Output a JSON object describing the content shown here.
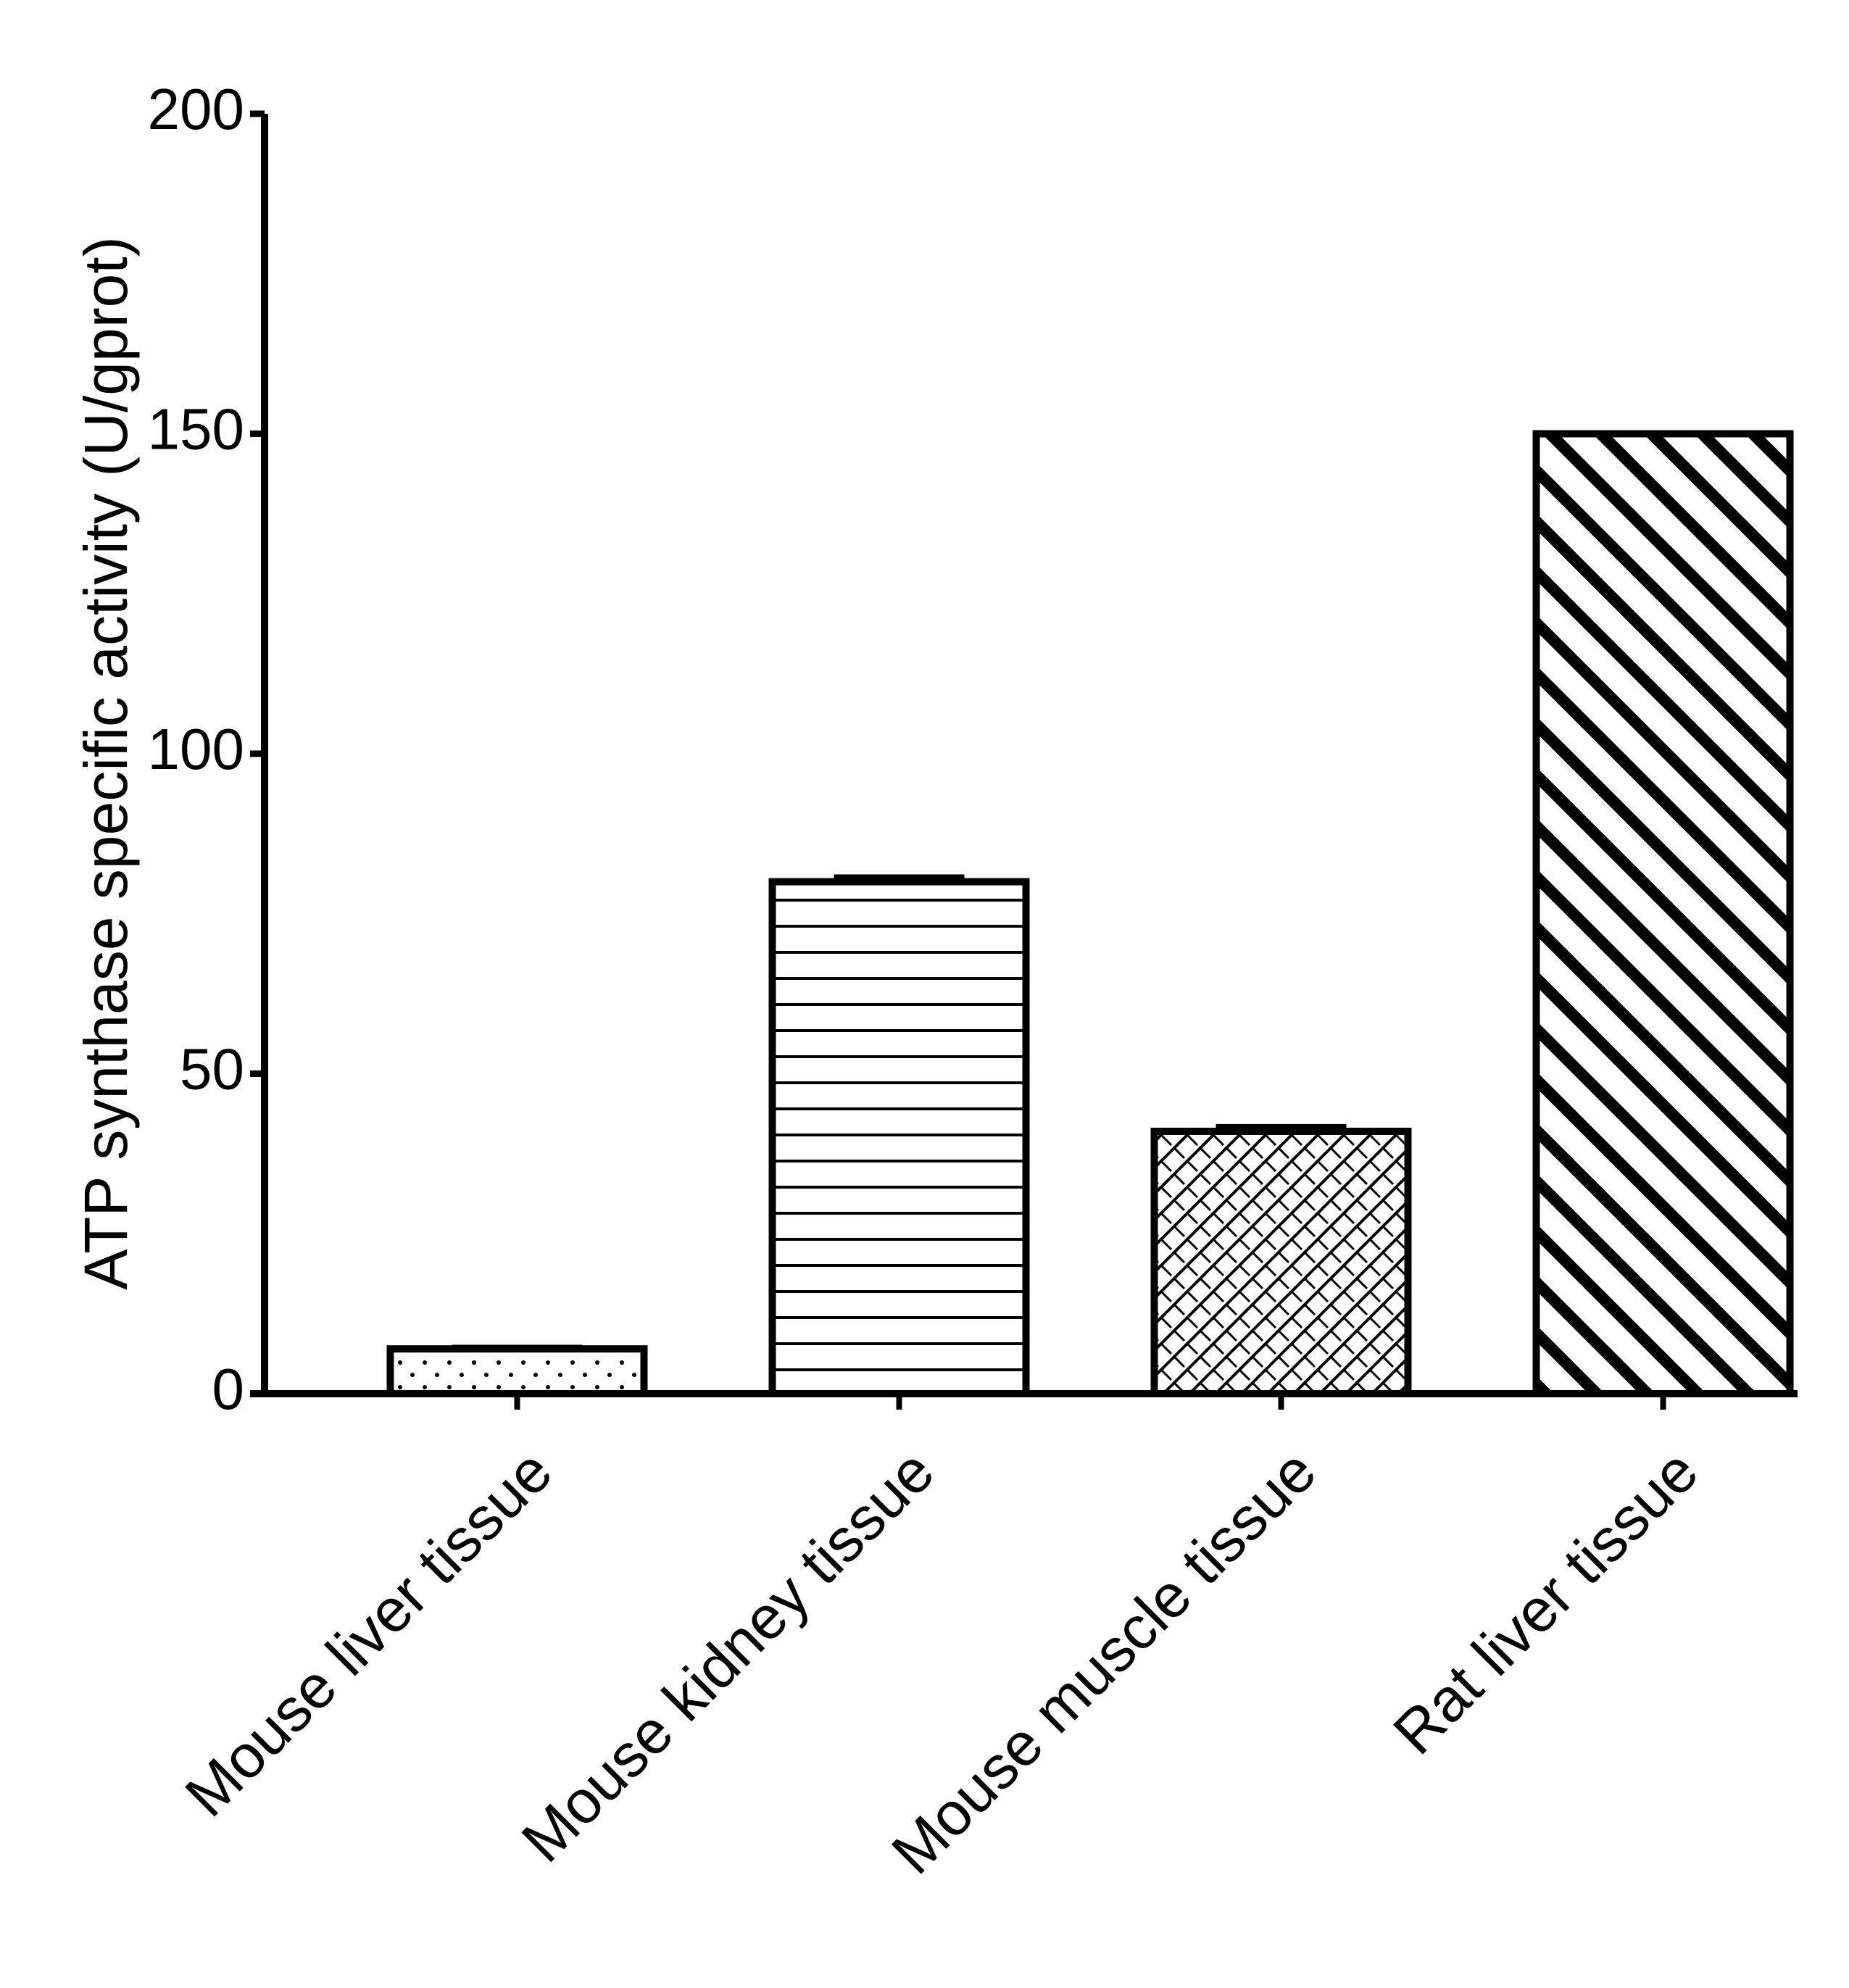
{
  "chart_data": {
    "type": "bar",
    "y_label": "ATP synthase specific activity (U/gprot)",
    "categories": [
      "Mouse liver tissue",
      "Mouse kidney tissue",
      "Mouse muscle tissue",
      "Rat liver tissue"
    ],
    "values": [
      7,
      80,
      41,
      150
    ],
    "errors": [
      0.3,
      0.8,
      0.8,
      0
    ],
    "patterns": [
      "dots",
      "horizontal",
      "crosshatch",
      "diagonal"
    ],
    "color": "#000000",
    "ylim": [
      0,
      200
    ],
    "yticks": [
      0,
      50,
      100,
      150,
      200
    ],
    "grid": false
  }
}
